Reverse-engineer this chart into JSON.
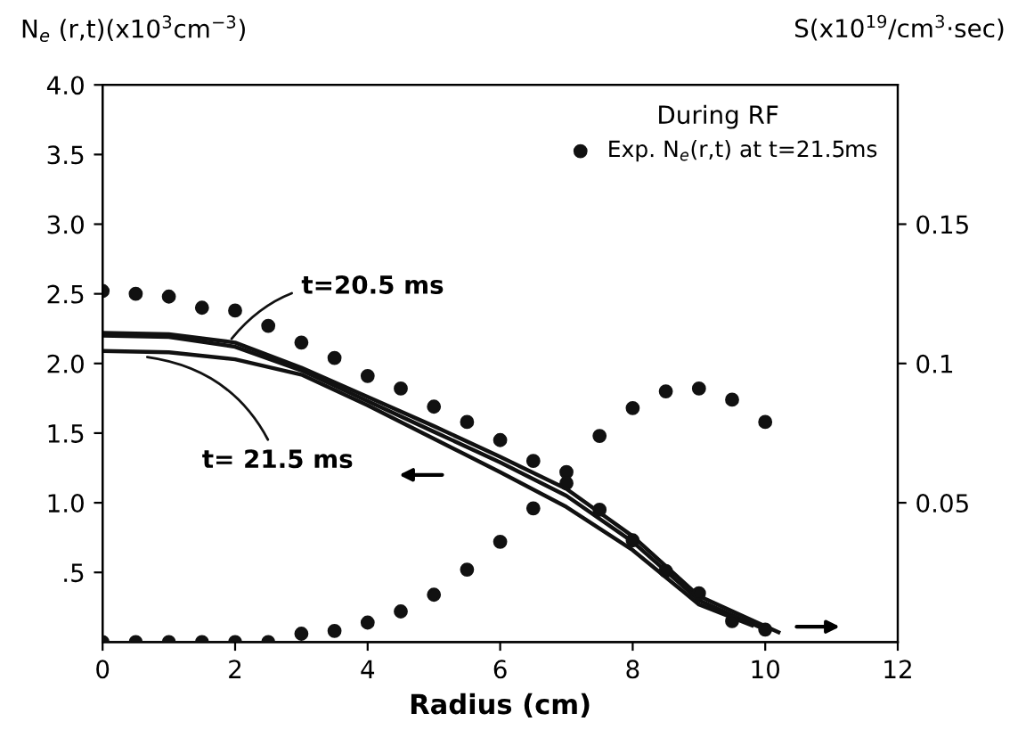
{
  "chart_data": {
    "type": "line",
    "xlabel": "Radius (cm)",
    "ylabel": "N$_{e}$ (r,t)(x10$^{3}$cm$^{−3}$)",
    "y2label": "S(x10$^{19}$/cm$^{3}$·sec)",
    "legend_title": "During RF",
    "legend": "top right",
    "grid": false,
    "xlim": [
      0,
      12
    ],
    "xticks": [
      0,
      2,
      4,
      6,
      8,
      10,
      12
    ],
    "ylim": [
      0,
      4.0
    ],
    "yticks": [
      {
        "value": 0.5,
        "label": ".5"
      },
      {
        "value": 1.0,
        "label": "1.0"
      },
      {
        "value": 1.5,
        "label": "1.5"
      },
      {
        "value": 2.0,
        "label": "2.0"
      },
      {
        "value": 2.5,
        "label": "2.5"
      },
      {
        "value": 3.0,
        "label": "3.0"
      },
      {
        "value": 3.5,
        "label": "3.5"
      },
      {
        "value": 4.0,
        "label": "4.0"
      }
    ],
    "y2lim": [
      0,
      0.2
    ],
    "y2ticks": [
      0.05,
      0.1,
      0.15
    ],
    "series": [
      {
        "name": "t=20.5 ms",
        "color": "#111111",
        "x": [
          0,
          1,
          2,
          3,
          4,
          5,
          6,
          7,
          8,
          9,
          10.2
        ],
        "values": [
          2.22,
          2.21,
          2.15,
          1.97,
          1.76,
          1.55,
          1.33,
          1.1,
          0.76,
          0.33,
          0.07
        ]
      },
      {
        "color": "#111111",
        "x": [
          0,
          1,
          2,
          3,
          4,
          5,
          6,
          7,
          8,
          9,
          10
        ],
        "values": [
          2.2,
          2.19,
          2.12,
          1.95,
          1.73,
          1.51,
          1.29,
          1.05,
          0.72,
          0.3,
          0.09
        ]
      },
      {
        "name": "t= 21.5 ms",
        "color": "#111111",
        "x": [
          0,
          1,
          2,
          3,
          4,
          5,
          6,
          7,
          8,
          9,
          9.8
        ],
        "values": [
          2.09,
          2.08,
          2.03,
          1.92,
          1.7,
          1.46,
          1.22,
          0.97,
          0.66,
          0.27,
          0.12
        ]
      },
      {
        "name": "Exp. N$_{e}$(r,t) at t=21.5ms",
        "type": "scatter",
        "marker": "circle",
        "color": "#111111",
        "x": [
          0,
          0.5,
          1,
          1.5,
          2,
          2.5,
          3,
          3.5,
          4,
          4.5,
          5,
          5.5,
          6,
          6.5,
          7,
          7.5,
          8,
          8.5,
          9,
          9.5,
          10
        ],
        "values": [
          2.52,
          2.5,
          2.48,
          2.4,
          2.38,
          2.27,
          2.15,
          2.04,
          1.91,
          1.82,
          1.69,
          1.58,
          1.45,
          1.3,
          1.14,
          0.95,
          0.73,
          0.51,
          0.35,
          0.15,
          0.09
        ]
      },
      {
        "type": "scatter",
        "marker": "circle",
        "axis": "y2",
        "color": "#111111",
        "x": [
          0,
          0.5,
          1,
          1.5,
          2,
          2.5,
          3,
          3.5,
          4,
          4.5,
          5,
          5.5,
          6,
          6.5,
          7,
          7.5,
          8,
          8.5,
          9,
          9.5,
          10
        ],
        "values": [
          0,
          0,
          0,
          0,
          0,
          0,
          0.003,
          0.004,
          0.007,
          0.011,
          0.017,
          0.026,
          0.036,
          0.048,
          0.061,
          0.074,
          0.084,
          0.09,
          0.091,
          0.087,
          0.079
        ]
      }
    ]
  }
}
